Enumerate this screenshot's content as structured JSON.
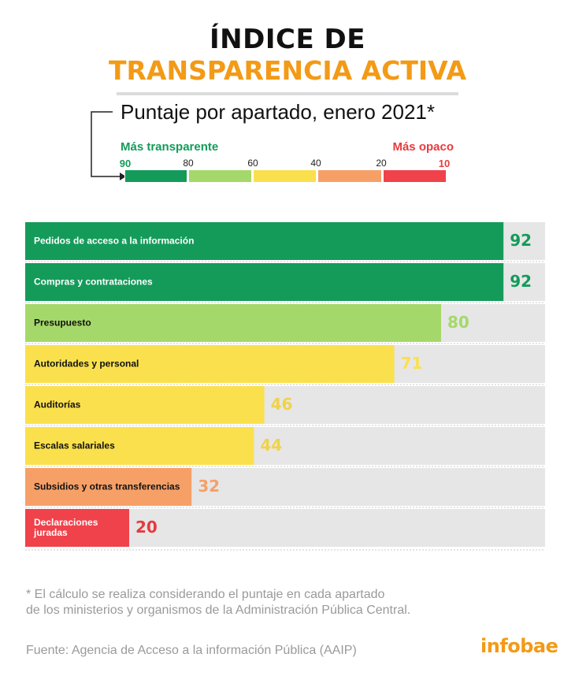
{
  "header": {
    "title_line1": "ÍNDICE DE",
    "title_line2": "TRANSPARENCIA ACTIVA",
    "subtitle": "Puntaje por apartado, enero 2021*"
  },
  "legend": {
    "left_label": "Más transparente",
    "right_label": "Más opaco",
    "ticks": [
      "90",
      "80",
      "60",
      "40",
      "20",
      "10"
    ],
    "swatch_colors": [
      "#149b5a",
      "#a5d86a",
      "#fae04d",
      "#f6a067",
      "#f0424a"
    ],
    "left_color": "#149b5a",
    "right_color": "#e63b3e"
  },
  "chart_data": {
    "type": "bar",
    "orientation": "horizontal",
    "title": "ÍNDICE DE TRANSPARENCIA ACTIVA",
    "subtitle": "Puntaje por apartado, enero 2021*",
    "xlim": [
      0,
      100
    ],
    "categories": [
      "Pedidos de acceso a la información",
      "Compras y contrataciones",
      "Presupuesto",
      "Autoridades y personal",
      "Auditorías",
      "Escalas salariales",
      "Subsidios y otras transferencias",
      "Declaraciones juradas"
    ],
    "values": [
      92,
      92,
      80,
      71,
      46,
      44,
      32,
      20
    ],
    "colors": [
      "#149b5a",
      "#149b5a",
      "#a5d86a",
      "#fae04d",
      "#fae04d",
      "#fae04d",
      "#f6a067",
      "#f0424a"
    ],
    "value_colors": [
      "#149b5a",
      "#149b5a",
      "#a5d86a",
      "#fae04d",
      "#f0d24a",
      "#f0d24a",
      "#f6a067",
      "#e63b3e"
    ],
    "background_color": "#e6e6e6"
  },
  "footer": {
    "footnote_line1": "* El cálculo se realiza considerando el puntaje en cada apartado",
    "footnote_line2": "de los ministerios y organismos de la Administración Pública Central.",
    "source": "Fuente: Agencia de Acceso a la información Pública (AAIP)",
    "brand": "infobae"
  }
}
